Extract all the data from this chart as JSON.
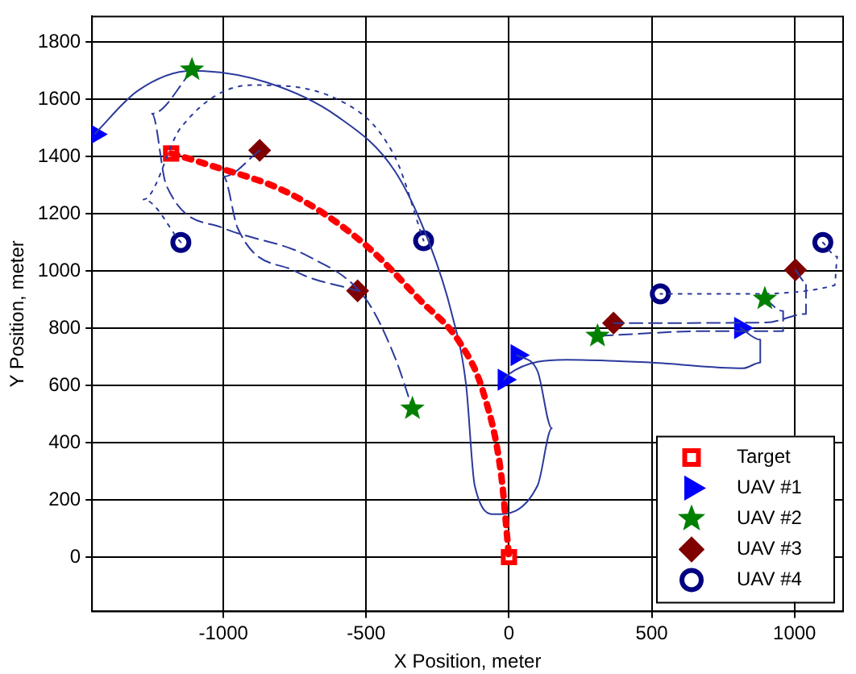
{
  "chart_data": {
    "type": "scatter",
    "xlabel": "X Position, meter",
    "ylabel": "Y Position, meter",
    "xlim": [
      -1460,
      1170
    ],
    "ylim": [
      -190,
      1890
    ],
    "xticks": [
      -1000,
      -500,
      0,
      500,
      1000
    ],
    "yticks": [
      0,
      200,
      400,
      600,
      800,
      1000,
      1200,
      1400,
      1600,
      1800
    ],
    "grid": true,
    "legend": "bottom right",
    "series": [
      {
        "type": "line",
        "color": "#ff0000",
        "line_style": "dotted",
        "x": [
          -1183,
          -1070,
          -766,
          -507,
          -316,
          -169,
          -90,
          -28,
          0
        ],
        "values": [
          1411,
          1377,
          1270,
          1095,
          903,
          745,
          576,
          293,
          0
        ]
      },
      {
        "type": "line",
        "color": "#2b3a9c",
        "line_style": "solid",
        "x": [
          -1450,
          -1300,
          -1110,
          -850,
          -600,
          -400,
          -280,
          -200,
          -150,
          -120,
          -50,
          100,
          150,
          100,
          28
        ],
        "values": [
          1480,
          1630,
          1700,
          1660,
          1540,
          1350,
          1100,
          850,
          600,
          250,
          150,
          250,
          450,
          650,
          706
        ]
      },
      {
        "type": "line",
        "color": "#2b3a9c",
        "line_style": "solid",
        "x": [
          811,
          880,
          880,
          820,
          500,
          200,
          0,
          -17
        ],
        "values": [
          801,
          760,
          680,
          660,
          680,
          690,
          640,
          620
        ]
      },
      {
        "type": "line",
        "color": "#2b3a9c",
        "line_style": "dashed",
        "x": [
          -1110,
          -1250,
          -1200,
          -1000,
          -700,
          -500,
          -400,
          -338
        ],
        "values": [
          1700,
          1550,
          1300,
          1150,
          1050,
          900,
          700,
          519
        ]
      },
      {
        "type": "line",
        "color": "#2b3a9c",
        "line_style": "dashed",
        "x": [
          896,
          960,
          960,
          700,
          310
        ],
        "values": [
          903,
          860,
          790,
          790,
          773
        ]
      },
      {
        "type": "line",
        "color": "#2b3a9c",
        "line_style": "dashed",
        "x": [
          -873,
          -1000,
          -950,
          -750,
          -530
        ],
        "values": [
          1422,
          1330,
          1150,
          1000,
          931
        ]
      },
      {
        "type": "line",
        "color": "#2b3a9c",
        "line_style": "dashed",
        "x": [
          1003,
          1040,
          1040,
          900,
          366
        ],
        "values": [
          1004,
          960,
          850,
          820,
          818
        ]
      },
      {
        "type": "line",
        "color": "#2b3a9c",
        "line_style": "dotted",
        "x": [
          -1149,
          -1280,
          -1150,
          -900,
          -600,
          -400,
          -299
        ],
        "values": [
          1100,
          1250,
          1500,
          1650,
          1600,
          1400,
          1106
        ]
      },
      {
        "type": "line",
        "color": "#2b3a9c",
        "line_style": "dotted",
        "x": [
          1099,
          1150,
          1140,
          800,
          530
        ],
        "values": [
          1100,
          1050,
          950,
          920,
          920
        ]
      },
      {
        "name": "Target",
        "marker": "square",
        "color": "#ff0000",
        "x": [
          -1183,
          0
        ],
        "values": [
          1411,
          0
        ]
      },
      {
        "name": "UAV #1",
        "marker": "triangle",
        "color": "#0000ff",
        "x": [
          -1450,
          811,
          28,
          -17
        ],
        "values": [
          1478,
          801,
          706,
          620
        ]
      },
      {
        "name": "UAV #2",
        "marker": "star",
        "color": "#008000",
        "x": [
          -1110,
          896,
          310,
          -338
        ],
        "values": [
          1704,
          903,
          773,
          519
        ]
      },
      {
        "name": "UAV #3",
        "marker": "diamond",
        "color": "#800000",
        "x": [
          -873,
          1003,
          -530,
          366
        ],
        "values": [
          1422,
          1004,
          931,
          818
        ]
      },
      {
        "name": "UAV #4",
        "marker": "circle",
        "color": "#000080",
        "x": [
          -1149,
          1099,
          -299,
          530
        ],
        "values": [
          1100,
          1100,
          1106,
          920
        ]
      }
    ]
  }
}
